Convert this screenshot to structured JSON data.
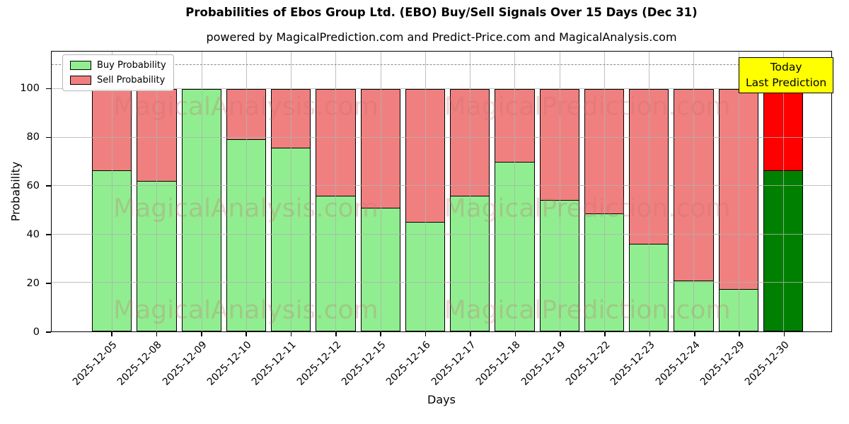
{
  "title": "Probabilities of Ebos Group Ltd. (EBO) Buy/Sell Signals Over 15 Days (Dec 31)",
  "subtitle": "powered by MagicalPrediction.com and Predict-Price.com and MagicalAnalysis.com",
  "legend": {
    "buy_label": "Buy Probability",
    "sell_label": "Sell Probability"
  },
  "annotation": {
    "line1": "Today",
    "line2": "Last Prediction"
  },
  "axes": {
    "x_label": "Days",
    "y_label": "Probability",
    "y_ticks": [
      0,
      20,
      40,
      60,
      80,
      100
    ]
  },
  "watermarks": {
    "left_text": "MagicalAnalysis.com",
    "right_text": "MagicalPrediction.com"
  },
  "colors": {
    "buy": "#90EE90",
    "sell": "#F08080",
    "today_buy": "#008000",
    "today_sell": "#FF0000",
    "annotation_bg": "#FFFF00",
    "grid": "#B0B0B0",
    "bar_edge": "#000000"
  },
  "chart_data": {
    "type": "bar",
    "stacked": true,
    "title": "Probabilities of Ebos Group Ltd. (EBO) Buy/Sell Signals Over 15 Days (Dec 31)",
    "xlabel": "Days",
    "ylabel": "Probability",
    "categories": [
      "2025-12-05",
      "2025-12-08",
      "2025-12-09",
      "2025-12-10",
      "2025-12-11",
      "2025-12-12",
      "2025-12-15",
      "2025-12-16",
      "2025-12-17",
      "2025-12-18",
      "2025-12-19",
      "2025-12-22",
      "2025-12-23",
      "2025-12-24",
      "2025-12-29",
      "2025-12-30"
    ],
    "series": [
      {
        "name": "Buy Probability",
        "color": "#90EE90",
        "values": [
          66.5,
          62,
          100,
          79.5,
          76,
          56,
          51,
          45,
          56,
          70,
          54,
          48.5,
          36,
          20.5,
          17,
          66.5
        ]
      },
      {
        "name": "Sell Probability",
        "color": "#F08080",
        "values": [
          33.5,
          38,
          0,
          20.5,
          24,
          44,
          49,
          55,
          44,
          30,
          46,
          51.5,
          64,
          79.5,
          83,
          33.5
        ]
      }
    ],
    "today_index": 15,
    "today_colors": {
      "buy": "#008000",
      "sell": "#FF0000"
    },
    "ylim": [
      0,
      115.5
    ],
    "y_ticks": [
      0,
      20,
      40,
      60,
      80,
      100
    ],
    "dashed_line_y": 110,
    "grid": true,
    "legend_position": "upper left"
  }
}
